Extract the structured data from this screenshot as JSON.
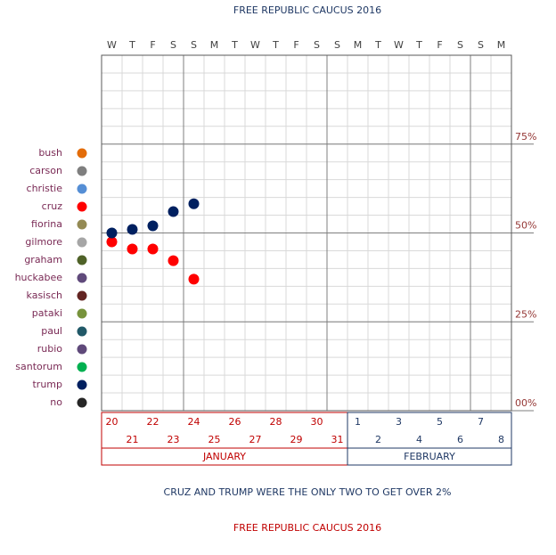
{
  "chart_data": {
    "type": "scatter",
    "title": "FREE REPUBLIC CAUCUS 2016",
    "subtitle": "CRUZ AND TRUMP WERE THE ONLY TWO TO GET OVER 2%",
    "footer": "FREE REPUBLIC CAUCUS 2016",
    "categories": [
      "20",
      "21",
      "22",
      "23",
      "24",
      "25",
      "26",
      "27",
      "28",
      "29",
      "30",
      "31",
      "1",
      "2",
      "3",
      "4",
      "5",
      "6",
      "7",
      "8"
    ],
    "weekdays": [
      "W",
      "T",
      "F",
      "S",
      "S",
      "M",
      "T",
      "W",
      "T",
      "F",
      "S",
      "S",
      "M",
      "T",
      "W",
      "T",
      "F",
      "S",
      "S",
      "M"
    ],
    "months": [
      {
        "name": "JANUARY",
        "color": "#c00000"
      },
      {
        "name": "FEBRUARY",
        "color": "#1f3864"
      }
    ],
    "ylim": [
      0,
      100
    ],
    "yticks": [
      {
        "value": 0,
        "label": "00%"
      },
      {
        "value": 25,
        "label": "25%"
      },
      {
        "value": 50,
        "label": "50%"
      },
      {
        "value": 75,
        "label": "75%"
      }
    ],
    "grid": true,
    "legend": "left",
    "series": [
      {
        "name": "bush",
        "color": "#e36c09",
        "values": [
          null,
          null,
          null,
          null,
          null,
          null,
          null,
          null,
          null,
          null,
          null,
          null,
          null,
          null,
          null,
          null,
          null,
          null,
          null,
          null
        ]
      },
      {
        "name": "carson",
        "color": "#7f7f7f",
        "values": [
          null,
          null,
          null,
          null,
          null,
          null,
          null,
          null,
          null,
          null,
          null,
          null,
          null,
          null,
          null,
          null,
          null,
          null,
          null,
          null
        ]
      },
      {
        "name": "christie",
        "color": "#558ed5",
        "values": [
          null,
          null,
          null,
          null,
          null,
          null,
          null,
          null,
          null,
          null,
          null,
          null,
          null,
          null,
          null,
          null,
          null,
          null,
          null,
          null
        ]
      },
      {
        "name": "cruz",
        "color": "#ff0000",
        "values": [
          47.5,
          45.5,
          45.5,
          42.2,
          37,
          null,
          null,
          null,
          null,
          null,
          null,
          null,
          null,
          null,
          null,
          null,
          null,
          null,
          null,
          null
        ]
      },
      {
        "name": "fiorina",
        "color": "#948a54",
        "values": [
          null,
          null,
          null,
          null,
          null,
          null,
          null,
          null,
          null,
          null,
          null,
          null,
          null,
          null,
          null,
          null,
          null,
          null,
          null,
          null
        ]
      },
      {
        "name": "gilmore",
        "color": "#a6a6a6",
        "values": [
          null,
          null,
          null,
          null,
          null,
          null,
          null,
          null,
          null,
          null,
          null,
          null,
          null,
          null,
          null,
          null,
          null,
          null,
          null,
          null
        ]
      },
      {
        "name": "graham",
        "color": "#4f6228",
        "values": [
          null,
          null,
          null,
          null,
          null,
          null,
          null,
          null,
          null,
          null,
          null,
          null,
          null,
          null,
          null,
          null,
          null,
          null,
          null,
          null
        ]
      },
      {
        "name": "huckabee",
        "color": "#604a7b",
        "values": [
          null,
          null,
          null,
          null,
          null,
          null,
          null,
          null,
          null,
          null,
          null,
          null,
          null,
          null,
          null,
          null,
          null,
          null,
          null,
          null
        ]
      },
      {
        "name": "kasisch",
        "color": "#632523",
        "values": [
          null,
          null,
          null,
          null,
          null,
          null,
          null,
          null,
          null,
          null,
          null,
          null,
          null,
          null,
          null,
          null,
          null,
          null,
          null,
          null
        ]
      },
      {
        "name": "pataki",
        "color": "#77933c",
        "values": [
          null,
          null,
          null,
          null,
          null,
          null,
          null,
          null,
          null,
          null,
          null,
          null,
          null,
          null,
          null,
          null,
          null,
          null,
          null,
          null
        ]
      },
      {
        "name": "paul",
        "color": "#215968",
        "values": [
          null,
          null,
          null,
          null,
          null,
          null,
          null,
          null,
          null,
          null,
          null,
          null,
          null,
          null,
          null,
          null,
          null,
          null,
          null,
          null
        ]
      },
      {
        "name": "rubio",
        "color": "#5f497a",
        "values": [
          null,
          null,
          null,
          null,
          null,
          null,
          null,
          null,
          null,
          null,
          null,
          null,
          null,
          null,
          null,
          null,
          null,
          null,
          null,
          null
        ]
      },
      {
        "name": "santorum",
        "color": "#00b050",
        "values": [
          null,
          null,
          null,
          null,
          null,
          null,
          null,
          null,
          null,
          null,
          null,
          null,
          null,
          null,
          null,
          null,
          null,
          null,
          null,
          null
        ]
      },
      {
        "name": "trump",
        "color": "#002060",
        "values": [
          50,
          51,
          52,
          56,
          58.2,
          null,
          null,
          null,
          null,
          null,
          null,
          null,
          null,
          null,
          null,
          null,
          null,
          null,
          null,
          null
        ]
      },
      {
        "name": "no",
        "color": "#262626",
        "values": [
          null,
          null,
          null,
          null,
          null,
          null,
          null,
          null,
          null,
          null,
          null,
          null,
          null,
          null,
          null,
          null,
          null,
          null,
          null,
          null
        ]
      }
    ]
  }
}
